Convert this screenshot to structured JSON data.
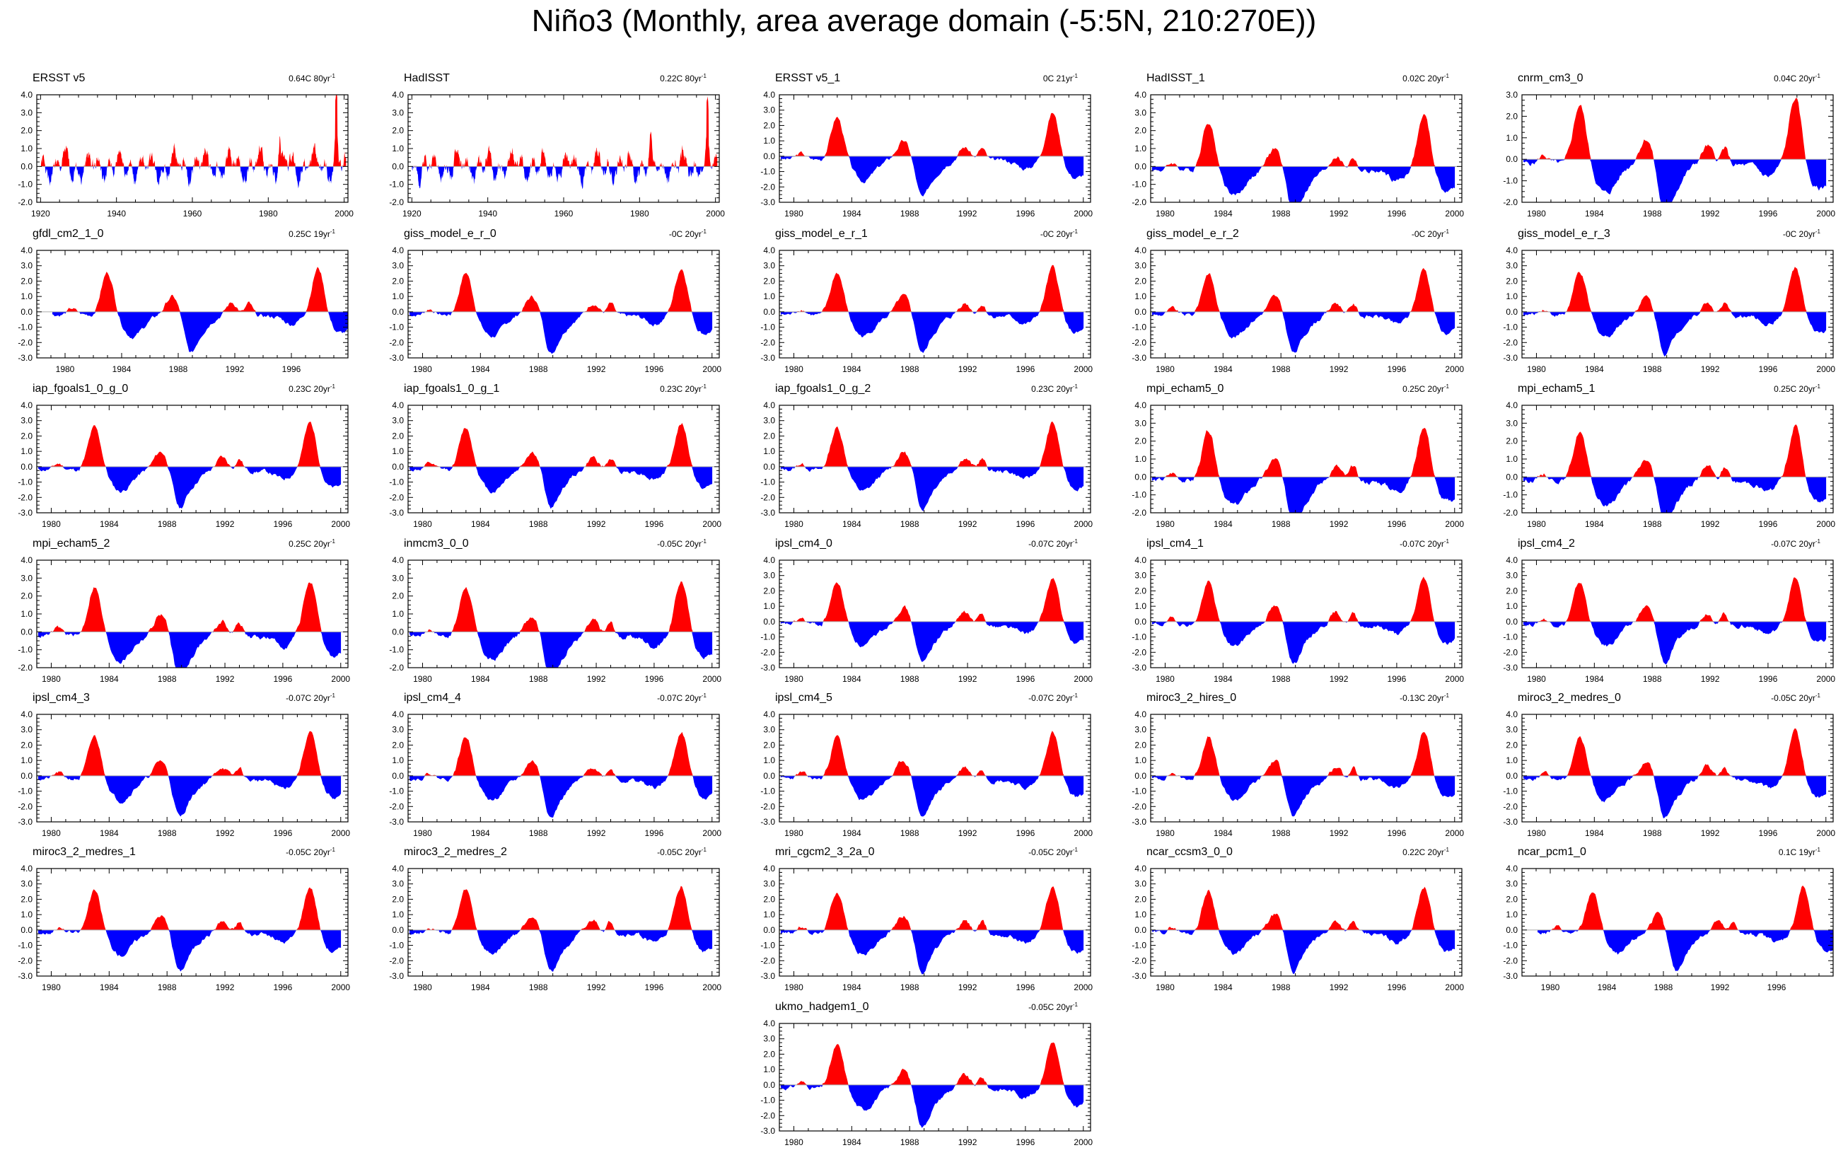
{
  "title": "Niño3 (Monthly, area average domain (-5:5N, 210:270E))",
  "colors": {
    "positive": "#ff0000",
    "negative": "#0000ff",
    "axis": "#000000",
    "zero": "#aaaaaa"
  },
  "chart_data": [
    {
      "type": "area",
      "title": "ERSST v5",
      "trend_label": "0.64C 80yr",
      "trend_exp": "-1",
      "xlim": [
        1919,
        2001
      ],
      "ylim": [
        -2,
        4
      ],
      "yticks": [
        -2,
        -1,
        0,
        1,
        2,
        3,
        4
      ],
      "yticklabels": [
        "-2.0",
        "-1.0",
        "0.0",
        "1.0",
        "2.0",
        "3.0",
        "4.0"
      ],
      "xticks": [
        1920,
        1940,
        1960,
        1980,
        2000
      ],
      "seed": 1
    },
    {
      "type": "area",
      "title": "HadISST",
      "trend_label": "0.22C 80yr",
      "trend_exp": "-1",
      "xlim": [
        1919,
        2001
      ],
      "ylim": [
        -2,
        4
      ],
      "yticks": [
        -2,
        -1,
        0,
        1,
        2,
        3,
        4
      ],
      "yticklabels": [
        "-2.0",
        "-1.0",
        "0.0",
        "1.0",
        "2.0",
        "3.0",
        "4.0"
      ],
      "xticks": [
        1920,
        1940,
        1960,
        1980,
        2000
      ],
      "seed": 2
    },
    {
      "type": "area",
      "title": "ERSST v5_1",
      "trend_label": "0C 21yr",
      "trend_exp": "-1",
      "xlim": [
        1979,
        2000.5
      ],
      "ylim": [
        -3,
        4
      ],
      "yticks": [
        -3,
        -2,
        -1,
        0,
        1,
        2,
        3,
        4
      ],
      "yticklabels": [
        "-3.0",
        "-2.0",
        "-1.0",
        "0.0",
        "1.0",
        "2.0",
        "3.0",
        "4.0"
      ],
      "xticks": [
        1980,
        1984,
        1988,
        1992,
        1996,
        2000
      ],
      "seed": 3
    },
    {
      "type": "area",
      "title": "HadISST_1",
      "trend_label": "0.02C 20yr",
      "trend_exp": "-1",
      "xlim": [
        1979,
        2000.5
      ],
      "ylim": [
        -2,
        4
      ],
      "yticks": [
        -2,
        -1,
        0,
        1,
        2,
        3,
        4
      ],
      "yticklabels": [
        "-2.0",
        "-1.0",
        "0.0",
        "1.0",
        "2.0",
        "3.0",
        "4.0"
      ],
      "xticks": [
        1980,
        1984,
        1988,
        1992,
        1996,
        2000
      ],
      "seed": 4
    },
    {
      "type": "area",
      "title": "cnrm_cm3_0",
      "trend_label": "0.04C 20yr",
      "trend_exp": "-1",
      "xlim": [
        1979,
        2000.5
      ],
      "ylim": [
        -2,
        3
      ],
      "yticks": [
        -2,
        -1,
        0,
        1,
        2,
        3
      ],
      "yticklabels": [
        "-2.0",
        "-1.0",
        "0.0",
        "1.0",
        "2.0",
        "3.0"
      ],
      "xticks": [
        1980,
        1984,
        1988,
        1992,
        1996,
        2000
      ],
      "seed": 5
    },
    {
      "type": "area",
      "title": "gfdl_cm2_1_0",
      "trend_label": "0.25C 19yr",
      "trend_exp": "-1",
      "xlim": [
        1978,
        2000
      ],
      "ylim": [
        -3,
        4
      ],
      "yticks": [
        -3,
        -2,
        -1,
        0,
        1,
        2,
        3,
        4
      ],
      "yticklabels": [
        "-3.0",
        "-2.0",
        "-1.0",
        "0.0",
        "1.0",
        "2.0",
        "3.0",
        "4.0"
      ],
      "xticks": [
        1980,
        1984,
        1988,
        1992,
        1996
      ],
      "seed": 6
    },
    {
      "type": "area",
      "title": "giss_model_e_r_0",
      "trend_label": "-0C 20yr",
      "trend_exp": "-1",
      "xlim": [
        1979,
        2000.5
      ],
      "ylim": [
        -3,
        4
      ],
      "yticks": [
        -3,
        -2,
        -1,
        0,
        1,
        2,
        3,
        4
      ],
      "yticklabels": [
        "-3.0",
        "-2.0",
        "-1.0",
        "0.0",
        "1.0",
        "2.0",
        "3.0",
        "4.0"
      ],
      "xticks": [
        1980,
        1984,
        1988,
        1992,
        1996,
        2000
      ],
      "seed": 7
    },
    {
      "type": "area",
      "title": "giss_model_e_r_1",
      "trend_label": "-0C 20yr",
      "trend_exp": "-1",
      "xlim": [
        1979,
        2000.5
      ],
      "ylim": [
        -3,
        4
      ],
      "yticks": [
        -3,
        -2,
        -1,
        0,
        1,
        2,
        3,
        4
      ],
      "yticklabels": [
        "-3.0",
        "-2.0",
        "-1.0",
        "0.0",
        "1.0",
        "2.0",
        "3.0",
        "4.0"
      ],
      "xticks": [
        1980,
        1984,
        1988,
        1992,
        1996,
        2000
      ],
      "seed": 8
    },
    {
      "type": "area",
      "title": "giss_model_e_r_2",
      "trend_label": "-0C 20yr",
      "trend_exp": "-1",
      "xlim": [
        1979,
        2000.5
      ],
      "ylim": [
        -3,
        4
      ],
      "yticks": [
        -3,
        -2,
        -1,
        0,
        1,
        2,
        3,
        4
      ],
      "yticklabels": [
        "-3.0",
        "-2.0",
        "-1.0",
        "0.0",
        "1.0",
        "2.0",
        "3.0",
        "4.0"
      ],
      "xticks": [
        1980,
        1984,
        1988,
        1992,
        1996,
        2000
      ],
      "seed": 9
    },
    {
      "type": "area",
      "title": "giss_model_e_r_3",
      "trend_label": "-0C 20yr",
      "trend_exp": "-1",
      "xlim": [
        1979,
        2000.5
      ],
      "ylim": [
        -3,
        4
      ],
      "yticks": [
        -3,
        -2,
        -1,
        0,
        1,
        2,
        3,
        4
      ],
      "yticklabels": [
        "-3.0",
        "-2.0",
        "-1.0",
        "0.0",
        "1.0",
        "2.0",
        "3.0",
        "4.0"
      ],
      "xticks": [
        1980,
        1984,
        1988,
        1992,
        1996,
        2000
      ],
      "seed": 10
    },
    {
      "type": "area",
      "title": "iap_fgoals1_0_g_0",
      "trend_label": "0.23C 20yr",
      "trend_exp": "-1",
      "xlim": [
        1979,
        2000.5
      ],
      "ylim": [
        -3,
        4
      ],
      "yticks": [
        -3,
        -2,
        -1,
        0,
        1,
        2,
        3,
        4
      ],
      "yticklabels": [
        "-3.0",
        "-2.0",
        "-1.0",
        "0.0",
        "1.0",
        "2.0",
        "3.0",
        "4.0"
      ],
      "xticks": [
        1980,
        1984,
        1988,
        1992,
        1996,
        2000
      ],
      "seed": 11
    },
    {
      "type": "area",
      "title": "iap_fgoals1_0_g_1",
      "trend_label": "0.23C 20yr",
      "trend_exp": "-1",
      "xlim": [
        1979,
        2000.5
      ],
      "ylim": [
        -3,
        4
      ],
      "yticks": [
        -3,
        -2,
        -1,
        0,
        1,
        2,
        3,
        4
      ],
      "yticklabels": [
        "-3.0",
        "-2.0",
        "-1.0",
        "0.0",
        "1.0",
        "2.0",
        "3.0",
        "4.0"
      ],
      "xticks": [
        1980,
        1984,
        1988,
        1992,
        1996,
        2000
      ],
      "seed": 12
    },
    {
      "type": "area",
      "title": "iap_fgoals1_0_g_2",
      "trend_label": "0.23C 20yr",
      "trend_exp": "-1",
      "xlim": [
        1979,
        2000.5
      ],
      "ylim": [
        -3,
        4
      ],
      "yticks": [
        -3,
        -2,
        -1,
        0,
        1,
        2,
        3,
        4
      ],
      "yticklabels": [
        "-3.0",
        "-2.0",
        "-1.0",
        "0.0",
        "1.0",
        "2.0",
        "3.0",
        "4.0"
      ],
      "xticks": [
        1980,
        1984,
        1988,
        1992,
        1996,
        2000
      ],
      "seed": 13
    },
    {
      "type": "area",
      "title": "mpi_echam5_0",
      "trend_label": "0.25C 20yr",
      "trend_exp": "-1",
      "xlim": [
        1979,
        2000.5
      ],
      "ylim": [
        -2,
        4
      ],
      "yticks": [
        -2,
        -1,
        0,
        1,
        2,
        3,
        4
      ],
      "yticklabels": [
        "-2.0",
        "-1.0",
        "0.0",
        "1.0",
        "2.0",
        "3.0",
        "4.0"
      ],
      "xticks": [
        1980,
        1984,
        1988,
        1992,
        1996,
        2000
      ],
      "seed": 14
    },
    {
      "type": "area",
      "title": "mpi_echam5_1",
      "trend_label": "0.25C 20yr",
      "trend_exp": "-1",
      "xlim": [
        1979,
        2000.5
      ],
      "ylim": [
        -2,
        4
      ],
      "yticks": [
        -2,
        -1,
        0,
        1,
        2,
        3,
        4
      ],
      "yticklabels": [
        "-2.0",
        "-1.0",
        "0.0",
        "1.0",
        "2.0",
        "3.0",
        "4.0"
      ],
      "xticks": [
        1980,
        1984,
        1988,
        1992,
        1996,
        2000
      ],
      "seed": 15
    },
    {
      "type": "area",
      "title": "mpi_echam5_2",
      "trend_label": "0.25C 20yr",
      "trend_exp": "-1",
      "xlim": [
        1979,
        2000.5
      ],
      "ylim": [
        -2,
        4
      ],
      "yticks": [
        -2,
        -1,
        0,
        1,
        2,
        3,
        4
      ],
      "yticklabels": [
        "-2.0",
        "-1.0",
        "0.0",
        "1.0",
        "2.0",
        "3.0",
        "4.0"
      ],
      "xticks": [
        1980,
        1984,
        1988,
        1992,
        1996,
        2000
      ],
      "seed": 16
    },
    {
      "type": "area",
      "title": "inmcm3_0_0",
      "trend_label": "-0.05C 20yr",
      "trend_exp": "-1",
      "xlim": [
        1979,
        2000.5
      ],
      "ylim": [
        -2,
        4
      ],
      "yticks": [
        -2,
        -1,
        0,
        1,
        2,
        3,
        4
      ],
      "yticklabels": [
        "-2.0",
        "-1.0",
        "0.0",
        "1.0",
        "2.0",
        "3.0",
        "4.0"
      ],
      "xticks": [
        1980,
        1984,
        1988,
        1992,
        1996,
        2000
      ],
      "seed": 17
    },
    {
      "type": "area",
      "title": "ipsl_cm4_0",
      "trend_label": "-0.07C 20yr",
      "trend_exp": "-1",
      "xlim": [
        1979,
        2000.5
      ],
      "ylim": [
        -3,
        4
      ],
      "yticks": [
        -3,
        -2,
        -1,
        0,
        1,
        2,
        3,
        4
      ],
      "yticklabels": [
        "-3.0",
        "-2.0",
        "-1.0",
        "0.0",
        "1.0",
        "2.0",
        "3.0",
        "4.0"
      ],
      "xticks": [
        1980,
        1984,
        1988,
        1992,
        1996,
        2000
      ],
      "seed": 18
    },
    {
      "type": "area",
      "title": "ipsl_cm4_1",
      "trend_label": "-0.07C 20yr",
      "trend_exp": "-1",
      "xlim": [
        1979,
        2000.5
      ],
      "ylim": [
        -3,
        4
      ],
      "yticks": [
        -3,
        -2,
        -1,
        0,
        1,
        2,
        3,
        4
      ],
      "yticklabels": [
        "-3.0",
        "-2.0",
        "-1.0",
        "0.0",
        "1.0",
        "2.0",
        "3.0",
        "4.0"
      ],
      "xticks": [
        1980,
        1984,
        1988,
        1992,
        1996,
        2000
      ],
      "seed": 19
    },
    {
      "type": "area",
      "title": "ipsl_cm4_2",
      "trend_label": "-0.07C 20yr",
      "trend_exp": "-1",
      "xlim": [
        1979,
        2000.5
      ],
      "ylim": [
        -3,
        4
      ],
      "yticks": [
        -3,
        -2,
        -1,
        0,
        1,
        2,
        3,
        4
      ],
      "yticklabels": [
        "-3.0",
        "-2.0",
        "-1.0",
        "0.0",
        "1.0",
        "2.0",
        "3.0",
        "4.0"
      ],
      "xticks": [
        1980,
        1984,
        1988,
        1992,
        1996,
        2000
      ],
      "seed": 20
    },
    {
      "type": "area",
      "title": "ipsl_cm4_3",
      "trend_label": "-0.07C 20yr",
      "trend_exp": "-1",
      "xlim": [
        1979,
        2000.5
      ],
      "ylim": [
        -3,
        4
      ],
      "yticks": [
        -3,
        -2,
        -1,
        0,
        1,
        2,
        3,
        4
      ],
      "yticklabels": [
        "-3.0",
        "-2.0",
        "-1.0",
        "0.0",
        "1.0",
        "2.0",
        "3.0",
        "4.0"
      ],
      "xticks": [
        1980,
        1984,
        1988,
        1992,
        1996,
        2000
      ],
      "seed": 21
    },
    {
      "type": "area",
      "title": "ipsl_cm4_4",
      "trend_label": "-0.07C 20yr",
      "trend_exp": "-1",
      "xlim": [
        1979,
        2000.5
      ],
      "ylim": [
        -3,
        4
      ],
      "yticks": [
        -3,
        -2,
        -1,
        0,
        1,
        2,
        3,
        4
      ],
      "yticklabels": [
        "-3.0",
        "-2.0",
        "-1.0",
        "0.0",
        "1.0",
        "2.0",
        "3.0",
        "4.0"
      ],
      "xticks": [
        1980,
        1984,
        1988,
        1992,
        1996,
        2000
      ],
      "seed": 22
    },
    {
      "type": "area",
      "title": "ipsl_cm4_5",
      "trend_label": "-0.07C 20yr",
      "trend_exp": "-1",
      "xlim": [
        1979,
        2000.5
      ],
      "ylim": [
        -3,
        4
      ],
      "yticks": [
        -3,
        -2,
        -1,
        0,
        1,
        2,
        3,
        4
      ],
      "yticklabels": [
        "-3.0",
        "-2.0",
        "-1.0",
        "0.0",
        "1.0",
        "2.0",
        "3.0",
        "4.0"
      ],
      "xticks": [
        1980,
        1984,
        1988,
        1992,
        1996,
        2000
      ],
      "seed": 23
    },
    {
      "type": "area",
      "title": "miroc3_2_hires_0",
      "trend_label": "-0.13C 20yr",
      "trend_exp": "-1",
      "xlim": [
        1979,
        2000.5
      ],
      "ylim": [
        -3,
        4
      ],
      "yticks": [
        -3,
        -2,
        -1,
        0,
        1,
        2,
        3,
        4
      ],
      "yticklabels": [
        "-3.0",
        "-2.0",
        "-1.0",
        "0.0",
        "1.0",
        "2.0",
        "3.0",
        "4.0"
      ],
      "xticks": [
        1980,
        1984,
        1988,
        1992,
        1996,
        2000
      ],
      "seed": 24
    },
    {
      "type": "area",
      "title": "miroc3_2_medres_0",
      "trend_label": "-0.05C 20yr",
      "trend_exp": "-1",
      "xlim": [
        1979,
        2000.5
      ],
      "ylim": [
        -3,
        4
      ],
      "yticks": [
        -3,
        -2,
        -1,
        0,
        1,
        2,
        3,
        4
      ],
      "yticklabels": [
        "-3.0",
        "-2.0",
        "-1.0",
        "0.0",
        "1.0",
        "2.0",
        "3.0",
        "4.0"
      ],
      "xticks": [
        1980,
        1984,
        1988,
        1992,
        1996,
        2000
      ],
      "seed": 25
    },
    {
      "type": "area",
      "title": "miroc3_2_medres_1",
      "trend_label": "-0.05C 20yr",
      "trend_exp": "-1",
      "xlim": [
        1979,
        2000.5
      ],
      "ylim": [
        -3,
        4
      ],
      "yticks": [
        -3,
        -2,
        -1,
        0,
        1,
        2,
        3,
        4
      ],
      "yticklabels": [
        "-3.0",
        "-2.0",
        "-1.0",
        "0.0",
        "1.0",
        "2.0",
        "3.0",
        "4.0"
      ],
      "xticks": [
        1980,
        1984,
        1988,
        1992,
        1996,
        2000
      ],
      "seed": 26
    },
    {
      "type": "area",
      "title": "miroc3_2_medres_2",
      "trend_label": "-0.05C 20yr",
      "trend_exp": "-1",
      "xlim": [
        1979,
        2000.5
      ],
      "ylim": [
        -3,
        4
      ],
      "yticks": [
        -3,
        -2,
        -1,
        0,
        1,
        2,
        3,
        4
      ],
      "yticklabels": [
        "-3.0",
        "-2.0",
        "-1.0",
        "0.0",
        "1.0",
        "2.0",
        "3.0",
        "4.0"
      ],
      "xticks": [
        1980,
        1984,
        1988,
        1992,
        1996,
        2000
      ],
      "seed": 27
    },
    {
      "type": "area",
      "title": "mri_cgcm2_3_2a_0",
      "trend_label": "-0.05C 20yr",
      "trend_exp": "-1",
      "xlim": [
        1979,
        2000.5
      ],
      "ylim": [
        -3,
        4
      ],
      "yticks": [
        -3,
        -2,
        -1,
        0,
        1,
        2,
        3,
        4
      ],
      "yticklabels": [
        "-3.0",
        "-2.0",
        "-1.0",
        "0.0",
        "1.0",
        "2.0",
        "3.0",
        "4.0"
      ],
      "xticks": [
        1980,
        1984,
        1988,
        1992,
        1996,
        2000
      ],
      "seed": 28
    },
    {
      "type": "area",
      "title": "ncar_ccsm3_0_0",
      "trend_label": "0.22C 20yr",
      "trend_exp": "-1",
      "xlim": [
        1979,
        2000.5
      ],
      "ylim": [
        -3,
        4
      ],
      "yticks": [
        -3,
        -2,
        -1,
        0,
        1,
        2,
        3,
        4
      ],
      "yticklabels": [
        "-3.0",
        "-2.0",
        "-1.0",
        "0.0",
        "1.0",
        "2.0",
        "3.0",
        "4.0"
      ],
      "xticks": [
        1980,
        1984,
        1988,
        1992,
        1996,
        2000
      ],
      "seed": 29
    },
    {
      "type": "area",
      "title": "ncar_pcm1_0",
      "trend_label": "0.1C 19yr",
      "trend_exp": "-1",
      "xlim": [
        1978,
        2000
      ],
      "ylim": [
        -3,
        4
      ],
      "yticks": [
        -3,
        -2,
        -1,
        0,
        1,
        2,
        3,
        4
      ],
      "yticklabels": [
        "-3.0",
        "-2.0",
        "-1.0",
        "0.0",
        "1.0",
        "2.0",
        "3.0",
        "4.0"
      ],
      "xticks": [
        1980,
        1984,
        1988,
        1992,
        1996
      ],
      "seed": 30
    },
    {
      "type": "area",
      "title": "ukmo_hadgem1_0",
      "trend_label": "-0.05C 20yr",
      "trend_exp": "-1",
      "xlim": [
        1979,
        2000.5
      ],
      "ylim": [
        -3,
        4
      ],
      "yticks": [
        -3,
        -2,
        -1,
        0,
        1,
        2,
        3,
        4
      ],
      "yticklabels": [
        "-3.0",
        "-2.0",
        "-1.0",
        "0.0",
        "1.0",
        "2.0",
        "3.0",
        "4.0"
      ],
      "xticks": [
        1980,
        1984,
        1988,
        1992,
        1996,
        2000
      ],
      "seed": 31
    }
  ]
}
